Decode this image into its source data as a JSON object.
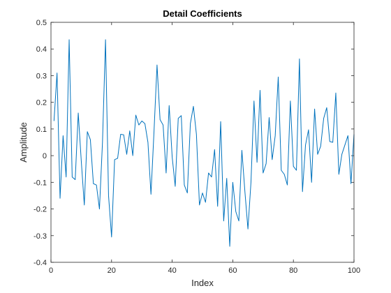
{
  "chart_data": {
    "type": "line",
    "title": "Detail Coefficients",
    "xlabel": "Index",
    "ylabel": "Amplitude",
    "xlim": [
      0,
      100
    ],
    "ylim": [
      -0.4,
      0.5
    ],
    "xticks": [
      "0",
      "20",
      "40",
      "60",
      "80",
      "100"
    ],
    "yticks": [
      "-0.4",
      "-0.3",
      "-0.2",
      "-0.1",
      "0",
      "0.1",
      "0.2",
      "0.3",
      "0.4",
      "0.5"
    ],
    "grid": false,
    "line_color": "#0072BD",
    "series": [
      {
        "x": [
          1,
          2,
          3,
          4,
          5,
          6,
          7,
          8,
          9,
          10,
          11,
          12,
          13,
          14,
          15,
          16,
          17,
          18,
          19,
          20,
          21,
          22,
          23,
          24,
          25,
          26,
          27,
          28,
          29,
          30,
          31,
          32,
          33,
          34,
          35,
          36,
          37,
          38,
          39,
          40,
          41,
          42,
          43,
          44,
          45,
          46,
          47,
          48,
          49,
          50,
          51,
          52,
          53,
          54,
          55,
          56,
          57,
          58,
          59,
          60,
          61,
          62,
          63,
          64,
          65,
          66,
          67,
          68,
          69,
          70,
          71,
          72,
          73,
          74,
          75,
          76,
          77,
          78,
          79,
          80,
          81,
          82,
          83,
          84,
          85,
          86,
          87,
          88,
          89,
          90,
          91,
          92,
          93,
          94,
          95,
          96,
          97,
          98,
          99,
          100
        ],
        "values": [
          0.13,
          0.31,
          -0.16,
          0.075,
          -0.08,
          0.435,
          -0.08,
          -0.09,
          0.16,
          -0.02,
          -0.185,
          0.09,
          0.06,
          -0.105,
          -0.11,
          -0.2,
          0.05,
          0.435,
          -0.15,
          -0.305,
          -0.015,
          -0.01,
          0.08,
          0.078,
          0.005,
          0.093,
          0.0,
          0.152,
          0.115,
          0.13,
          0.12,
          0.05,
          -0.145,
          0.09,
          0.34,
          0.135,
          0.115,
          -0.065,
          0.188,
          -0.005,
          -0.115,
          0.14,
          0.15,
          -0.11,
          -0.14,
          0.12,
          0.185,
          0.08,
          -0.185,
          -0.14,
          -0.175,
          -0.065,
          -0.08,
          0.023,
          -0.19,
          0.128,
          -0.245,
          -0.085,
          -0.34,
          -0.1,
          -0.21,
          -0.245,
          0.02,
          -0.135,
          -0.275,
          -0.1,
          0.205,
          -0.025,
          0.245,
          -0.065,
          -0.03,
          0.143,
          -0.015,
          0.075,
          0.295,
          -0.055,
          -0.07,
          -0.11,
          0.205,
          -0.04,
          -0.055,
          0.363,
          -0.135,
          0.04,
          0.097,
          -0.1,
          0.175,
          0.005,
          0.035,
          0.14,
          0.18,
          0.053,
          0.05,
          0.235,
          -0.07,
          0.005,
          0.04,
          0.075,
          -0.105,
          0.08
        ]
      }
    ]
  }
}
